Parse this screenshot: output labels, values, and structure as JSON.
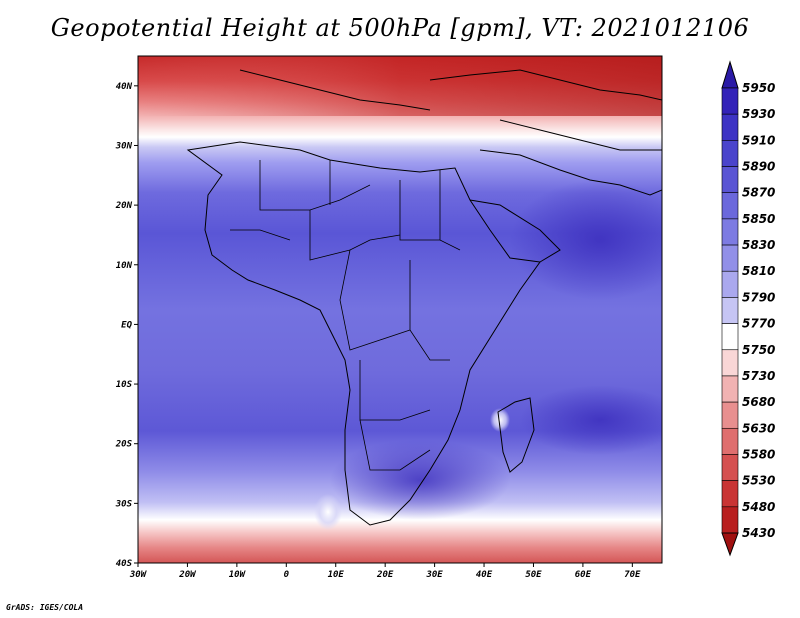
{
  "chart_data": {
    "type": "heatmap",
    "title": "Geopotential Height at 500hPa [gpm], VT: 2021012106",
    "variable": "Geopotential Height at 500hPa",
    "units": "gpm",
    "valid_time": "2021012106",
    "xlim": [
      -30,
      76
    ],
    "ylim": [
      -40,
      45
    ],
    "x_ticks": [
      {
        "value": -30,
        "label": "30W"
      },
      {
        "value": -20,
        "label": "20W"
      },
      {
        "value": -10,
        "label": "10W"
      },
      {
        "value": 0,
        "label": "0"
      },
      {
        "value": 10,
        "label": "10E"
      },
      {
        "value": 20,
        "label": "20E"
      },
      {
        "value": 30,
        "label": "30E"
      },
      {
        "value": 40,
        "label": "40E"
      },
      {
        "value": 50,
        "label": "50E"
      },
      {
        "value": 60,
        "label": "60E"
      },
      {
        "value": 70,
        "label": "70E"
      }
    ],
    "y_ticks": [
      {
        "value": 40,
        "label": "40N"
      },
      {
        "value": 30,
        "label": "30N"
      },
      {
        "value": 20,
        "label": "20N"
      },
      {
        "value": 10,
        "label": "10N"
      },
      {
        "value": 0,
        "label": "EQ"
      },
      {
        "value": -10,
        "label": "10S"
      },
      {
        "value": -20,
        "label": "20S"
      },
      {
        "value": -30,
        "label": "30S"
      },
      {
        "value": -40,
        "label": "40S"
      }
    ],
    "colorbar": {
      "levels": [
        5950,
        5930,
        5910,
        5890,
        5870,
        5850,
        5830,
        5810,
        5790,
        5770,
        5750,
        5730,
        5680,
        5630,
        5580,
        5530,
        5480,
        5430
      ],
      "colors": [
        "#2a1aa6",
        "#3322b8",
        "#3d33c4",
        "#4a44cc",
        "#5a55d4",
        "#6b68dc",
        "#7d7be2",
        "#9290e8",
        "#aaa8ee",
        "#c6c5f4",
        "#ffffff",
        "#f9d6d6",
        "#f1b2b2",
        "#e88f8f",
        "#df6e6e",
        "#d55050",
        "#c93434",
        "#b81f1f",
        "#a01010"
      ]
    },
    "regions": [
      {
        "name": "band",
        "lat_min": 38,
        "lat_max": 45,
        "value": 5560
      },
      {
        "name": "band",
        "lat_min": 34,
        "lat_max": 38,
        "value": 5680
      },
      {
        "name": "band",
        "lat_min": 31,
        "lat_max": 34,
        "value": 5760
      },
      {
        "name": "band",
        "lat_min": 28,
        "lat_max": 31,
        "value": 5800
      },
      {
        "name": "band",
        "lat_min": 10,
        "lat_max": 28,
        "value": 5860
      },
      {
        "name": "band",
        "lat_min": -20,
        "lat_max": 10,
        "value": 5880
      },
      {
        "name": "band",
        "lat_min": -30,
        "lat_max": -20,
        "value": 5860
      },
      {
        "name": "band",
        "lat_min": -34,
        "lat_max": -30,
        "value": 5820
      },
      {
        "name": "band",
        "lat_min": -37,
        "lat_max": -34,
        "value": 5760
      },
      {
        "name": "band",
        "lat_min": -40,
        "lat_max": -37,
        "value": 5640
      }
    ]
  },
  "credit": "GrADS: IGES/COLA"
}
